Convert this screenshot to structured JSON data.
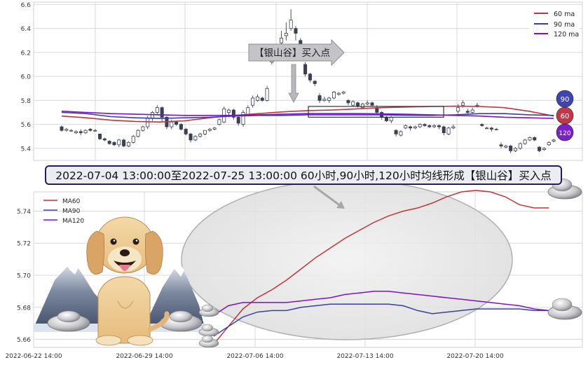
{
  "colors": {
    "ma60": "#c0343c",
    "ma90": "#3a3fa2",
    "ma120": "#7b14c4",
    "candle_up_edge": "#3b3f52",
    "candle_down_fill": "#3b3f52",
    "grid": "#d9d9d9",
    "badge_90": "#3e44b0",
    "badge_60": "#c0384a",
    "badge_120": "#7a20c8"
  },
  "banner": {
    "text": "2022-07-04 13:00:00至2022-07-25 13:00:00 60小时,90小时,120小时均线形成【银山谷】买入点"
  },
  "callout": {
    "label": "【银山谷】买入点"
  },
  "badges": [
    "90",
    "60",
    "120"
  ],
  "decorations": [
    "dog-illustration",
    "mountain-illustration",
    "silver-ingot-icon"
  ],
  "chart_data": [
    {
      "type": "candlestick",
      "title": "",
      "xlabel": "",
      "ylabel": "",
      "ylim": [
        5.3,
        6.62
      ],
      "yticks": [
        "5.4",
        "5.6",
        "5.8",
        "6.0",
        "6.2",
        "6.4",
        "6.6"
      ],
      "grid": true,
      "legend": {
        "position": "top-right",
        "entries": [
          "60 ma",
          "90 ma",
          "120 ma"
        ]
      },
      "candles": [
        [
          5.58,
          5.55,
          5.59,
          5.54
        ],
        [
          5.55,
          5.56,
          5.57,
          5.54
        ],
        [
          5.55,
          5.55,
          5.56,
          5.54
        ],
        [
          5.53,
          5.54,
          5.55,
          5.52
        ],
        [
          5.54,
          5.53,
          5.56,
          5.51
        ],
        [
          5.53,
          5.55,
          5.56,
          5.52
        ],
        [
          5.56,
          5.55,
          5.57,
          5.54
        ],
        [
          5.55,
          5.55,
          5.56,
          5.54
        ],
        [
          5.52,
          5.48,
          5.52,
          5.47
        ],
        [
          5.48,
          5.47,
          5.49,
          5.46
        ],
        [
          5.46,
          5.44,
          5.47,
          5.43
        ],
        [
          5.45,
          5.43,
          5.46,
          5.42
        ],
        [
          5.43,
          5.47,
          5.48,
          5.41
        ],
        [
          5.47,
          5.42,
          5.48,
          5.41
        ],
        [
          5.42,
          5.45,
          5.46,
          5.41
        ],
        [
          5.45,
          5.5,
          5.51,
          5.44
        ],
        [
          5.5,
          5.55,
          5.56,
          5.49
        ],
        [
          5.55,
          5.58,
          5.59,
          5.54
        ],
        [
          5.58,
          5.65,
          5.67,
          5.56
        ],
        [
          5.65,
          5.7,
          5.71,
          5.63
        ],
        [
          5.7,
          5.74,
          5.76,
          5.68
        ],
        [
          5.74,
          5.66,
          5.75,
          5.62
        ],
        [
          5.66,
          5.58,
          5.67,
          5.56
        ],
        [
          5.58,
          5.62,
          5.64,
          5.56
        ],
        [
          5.62,
          5.6,
          5.63,
          5.59
        ],
        [
          5.6,
          5.56,
          5.61,
          5.55
        ],
        [
          5.56,
          5.52,
          5.57,
          5.51
        ],
        [
          5.52,
          5.47,
          5.53,
          5.45
        ],
        [
          5.47,
          5.5,
          5.51,
          5.46
        ],
        [
          5.5,
          5.52,
          5.53,
          5.49
        ],
        [
          5.52,
          5.55,
          5.55,
          5.51
        ],
        [
          5.55,
          5.56,
          5.57,
          5.54
        ],
        [
          5.56,
          5.57,
          5.58,
          5.55
        ],
        [
          5.6,
          5.64,
          5.65,
          5.59
        ],
        [
          5.62,
          5.73,
          5.75,
          5.61
        ],
        [
          5.7,
          5.72,
          5.73,
          5.66
        ],
        [
          5.72,
          5.66,
          5.73,
          5.64
        ],
        [
          5.66,
          5.61,
          5.67,
          5.59
        ],
        [
          5.6,
          5.7,
          5.72,
          5.58
        ],
        [
          5.68,
          5.74,
          5.76,
          5.67
        ],
        [
          5.76,
          5.82,
          5.84,
          5.74
        ],
        [
          5.8,
          5.83,
          5.85,
          5.79
        ],
        [
          5.82,
          5.8,
          5.83,
          5.79
        ],
        [
          5.8,
          5.9,
          5.92,
          5.79
        ],
        [
          6.12,
          6.14,
          6.16,
          6.1
        ],
        [
          6.18,
          6.22,
          6.24,
          6.16
        ],
        [
          6.28,
          6.32,
          6.38,
          6.26
        ],
        [
          6.34,
          6.36,
          6.45,
          6.3
        ],
        [
          6.4,
          6.47,
          6.56,
          6.38
        ],
        [
          6.4,
          6.36,
          6.42,
          6.3
        ],
        [
          6.3,
          6.21,
          6.32,
          6.19
        ],
        [
          6.1,
          6.02,
          6.12,
          6.0
        ],
        [
          6.02,
          5.97,
          6.03,
          5.95
        ],
        [
          5.96,
          5.94,
          5.97,
          5.92
        ],
        [
          5.84,
          5.8,
          5.86,
          5.78
        ],
        [
          5.8,
          5.81,
          5.83,
          5.79
        ],
        [
          5.8,
          5.82,
          5.83,
          5.78
        ],
        [
          5.82,
          5.87,
          5.88,
          5.81
        ],
        [
          5.85,
          5.86,
          5.87,
          5.84
        ],
        [
          5.86,
          5.87,
          5.88,
          5.85
        ],
        [
          5.8,
          5.78,
          5.81,
          5.76
        ],
        [
          5.76,
          5.79,
          5.8,
          5.75
        ],
        [
          5.78,
          5.75,
          5.79,
          5.74
        ],
        [
          5.74,
          5.77,
          5.78,
          5.73
        ],
        [
          5.77,
          5.78,
          5.8,
          5.76
        ],
        [
          5.78,
          5.76,
          5.79,
          5.75
        ],
        [
          5.74,
          5.7,
          5.76,
          5.68
        ],
        [
          5.7,
          5.66,
          5.71,
          5.64
        ],
        [
          5.66,
          5.63,
          5.67,
          5.62
        ],
        [
          5.63,
          5.66,
          5.67,
          5.61
        ],
        [
          5.55,
          5.52,
          5.56,
          5.5
        ],
        [
          5.51,
          5.54,
          5.55,
          5.5
        ],
        [
          5.57,
          5.59,
          5.6,
          5.56
        ],
        [
          5.58,
          5.57,
          5.59,
          5.55
        ],
        [
          5.57,
          5.58,
          5.59,
          5.56
        ],
        [
          5.58,
          5.6,
          5.61,
          5.57
        ],
        [
          5.6,
          5.59,
          5.61,
          5.58
        ],
        [
          5.59,
          5.58,
          5.6,
          5.57
        ],
        [
          5.58,
          5.59,
          5.6,
          5.57
        ],
        [
          5.59,
          5.58,
          5.6,
          5.56
        ],
        [
          5.58,
          5.53,
          5.59,
          5.51
        ],
        [
          5.52,
          5.57,
          5.58,
          5.51
        ],
        [
          5.57,
          5.58,
          5.6,
          5.56
        ],
        [
          5.71,
          5.74,
          5.77,
          5.69
        ],
        [
          5.76,
          5.78,
          5.8,
          5.74
        ],
        [
          5.71,
          5.7,
          5.73,
          5.68
        ],
        [
          5.7,
          5.72,
          5.74,
          5.69
        ],
        [
          5.76,
          5.76,
          5.78,
          5.74
        ],
        [
          5.6,
          5.59,
          5.61,
          5.58
        ],
        [
          5.57,
          5.57,
          5.58,
          5.56
        ],
        [
          5.57,
          5.56,
          5.58,
          5.54
        ],
        [
          5.56,
          5.56,
          5.57,
          5.55
        ],
        [
          5.43,
          5.42,
          5.45,
          5.4
        ],
        [
          5.41,
          5.42,
          5.43,
          5.4
        ],
        [
          5.42,
          5.38,
          5.43,
          5.36
        ],
        [
          5.38,
          5.4,
          5.41,
          5.37
        ],
        [
          5.4,
          5.44,
          5.45,
          5.39
        ],
        [
          5.44,
          5.47,
          5.48,
          5.43
        ],
        [
          5.47,
          5.49,
          5.5,
          5.46
        ],
        [
          5.49,
          5.47,
          5.5,
          5.46
        ],
        [
          5.41,
          5.38,
          5.42,
          5.37
        ],
        [
          5.39,
          5.4,
          5.41,
          5.38
        ],
        [
          5.43,
          5.45,
          5.46,
          5.42
        ],
        [
          5.46,
          5.47,
          5.48,
          5.45
        ]
      ],
      "series": [
        {
          "name": "60 ma",
          "values": [
            5.67,
            5.655,
            5.635,
            5.625,
            5.62,
            5.63,
            5.655,
            5.675,
            5.69,
            5.705,
            5.715,
            5.72,
            5.73,
            5.74,
            5.745,
            5.75,
            5.752,
            5.75,
            5.74,
            5.71,
            5.67
          ]
        },
        {
          "name": "90 ma",
          "values": [
            5.7,
            5.69,
            5.665,
            5.655,
            5.65,
            5.655,
            5.66,
            5.67,
            5.675,
            5.675,
            5.68,
            5.68,
            5.68,
            5.68,
            5.676,
            5.675,
            5.68,
            5.69,
            5.69,
            5.68,
            5.675
          ]
        },
        {
          "name": "120 ma",
          "values": [
            5.71,
            5.7,
            5.69,
            5.685,
            5.68,
            5.675,
            5.675,
            5.675,
            5.68,
            5.685,
            5.69,
            5.69,
            5.69,
            5.688,
            5.685,
            5.68,
            5.675,
            5.67,
            5.66,
            5.655,
            5.65
          ]
        }
      ],
      "annotation_box": {
        "x_range": [
          0.5,
          0.775
        ],
        "y_range": [
          5.66,
          5.75
        ]
      }
    },
    {
      "type": "line",
      "title": "",
      "xlabel": "",
      "ylabel": "",
      "ylim": [
        5.655,
        5.752
      ],
      "yticks": [
        "5.66",
        "5.68",
        "5.70",
        "5.72",
        "5.74"
      ],
      "x_labels": [
        "2022-06-22 14:00",
        "2022-06-29 14:00",
        "2022-07-06 14:00",
        "2022-07-13 14:00",
        "2022-07-20 14:00"
      ],
      "grid": true,
      "legend": {
        "position": "top-left",
        "entries": [
          "MA60",
          "MA90",
          "MA120"
        ]
      },
      "x": [
        0,
        1,
        2,
        3,
        4,
        5,
        6,
        7,
        8,
        9,
        10,
        11,
        12,
        13,
        14,
        15,
        16,
        17,
        18,
        19,
        20,
        21,
        22,
        23
      ],
      "series": [
        {
          "name": "MA60",
          "values": [
            5.657,
            5.668,
            5.679,
            5.686,
            5.691,
            5.697,
            5.704,
            5.711,
            5.717,
            5.723,
            5.728,
            5.733,
            5.737,
            5.74,
            5.742,
            5.745,
            5.749,
            5.752,
            5.753,
            5.752,
            5.749,
            5.744,
            5.742,
            5.742
          ]
        },
        {
          "name": "MA90",
          "values": [
            5.662,
            5.668,
            5.674,
            5.677,
            5.678,
            5.678,
            5.68,
            5.681,
            5.682,
            5.682,
            5.682,
            5.682,
            5.682,
            5.681,
            5.678,
            5.676,
            5.677,
            5.678,
            5.679,
            5.679,
            5.679,
            5.679,
            5.678,
            5.678
          ]
        },
        {
          "name": "MA120",
          "values": [
            5.675,
            5.681,
            5.683,
            5.683,
            5.683,
            5.683,
            5.684,
            5.685,
            5.686,
            5.688,
            5.689,
            5.69,
            5.69,
            5.689,
            5.688,
            5.687,
            5.686,
            5.685,
            5.684,
            5.683,
            5.682,
            5.681,
            5.679,
            5.678
          ]
        }
      ]
    }
  ]
}
